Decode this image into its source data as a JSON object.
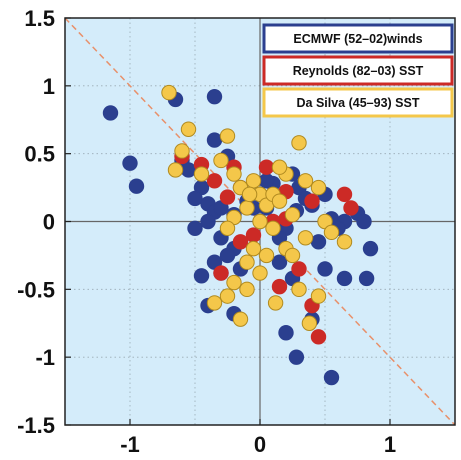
{
  "chart_data": {
    "type": "scatter",
    "title": "",
    "xlabel": "",
    "ylabel": "",
    "xlim": [
      -1.5,
      1.5
    ],
    "ylim": [
      -1.5,
      1.5
    ],
    "x_ticks": [
      "-1",
      "0",
      "1"
    ],
    "y_ticks": [
      "1.5",
      "1",
      "0.5",
      "0",
      "-0.5",
      "-1",
      "-1.5"
    ],
    "grid": true,
    "background_color": "#d4ecfa",
    "reference_lines": [
      {
        "type": "diagonal",
        "slope": -1,
        "style": "dashed",
        "color": "#e8906a"
      },
      {
        "type": "axis-cross",
        "x": 0,
        "y": 0,
        "color": "#666666"
      }
    ],
    "legend_placement": "top-right",
    "series": [
      {
        "name": "ECMWF (52–02)winds",
        "color": "#2b3f8f",
        "border_color": "#2b3f8f",
        "points": [
          [
            -1.15,
            0.8
          ],
          [
            -1.0,
            0.43
          ],
          [
            -0.95,
            0.26
          ],
          [
            -0.65,
            0.9
          ],
          [
            -0.35,
            0.92
          ],
          [
            -0.6,
            0.45
          ],
          [
            -0.55,
            0.38
          ],
          [
            -0.45,
            0.25
          ],
          [
            -0.35,
            0.6
          ],
          [
            -0.25,
            0.48
          ],
          [
            -0.5,
            0.17
          ],
          [
            -0.4,
            0.13
          ],
          [
            -0.35,
            0.07
          ],
          [
            -0.3,
            0.1
          ],
          [
            -0.2,
            0.05
          ],
          [
            -0.1,
            0.15
          ],
          [
            0.05,
            0.1
          ],
          [
            0.1,
            0.28
          ],
          [
            0.25,
            0.35
          ],
          [
            0.3,
            0.25
          ],
          [
            0.35,
            0.17
          ],
          [
            0.2,
            -0.05
          ],
          [
            0.4,
            0.12
          ],
          [
            0.5,
            0.2
          ],
          [
            0.55,
            0.02
          ],
          [
            0.65,
            0.0
          ],
          [
            0.75,
            0.06
          ],
          [
            0.8,
            0.0
          ],
          [
            0.85,
            -0.2
          ],
          [
            0.45,
            -0.15
          ],
          [
            -0.5,
            -0.05
          ],
          [
            -0.3,
            -0.12
          ],
          [
            -0.2,
            -0.2
          ],
          [
            -0.25,
            -0.25
          ],
          [
            -0.35,
            -0.3
          ],
          [
            -0.45,
            -0.4
          ],
          [
            -0.3,
            -0.38
          ],
          [
            -0.15,
            -0.35
          ],
          [
            0.15,
            -0.3
          ],
          [
            0.25,
            -0.42
          ],
          [
            0.5,
            -0.35
          ],
          [
            -0.4,
            -0.62
          ],
          [
            -0.2,
            -0.68
          ],
          [
            0.2,
            -0.82
          ],
          [
            0.4,
            -0.72
          ],
          [
            0.28,
            -1.0
          ],
          [
            0.55,
            -1.15
          ],
          [
            0.65,
            -0.42
          ],
          [
            0.82,
            -0.42
          ],
          [
            0.15,
            -0.12
          ],
          [
            0.28,
            0.08
          ],
          [
            -0.4,
            0.0
          ],
          [
            0.05,
            0.3
          ],
          [
            -0.05,
            0.1
          ],
          [
            0.6,
            -0.05
          ]
        ]
      },
      {
        "name": "Reynolds (82–03) SST",
        "color": "#cc2a26",
        "border_color": "#cc2a26",
        "points": [
          [
            -0.6,
            0.48
          ],
          [
            -0.45,
            0.42
          ],
          [
            -0.35,
            0.3
          ],
          [
            -0.2,
            0.4
          ],
          [
            -0.15,
            0.25
          ],
          [
            0.05,
            0.4
          ],
          [
            -0.25,
            0.18
          ],
          [
            0.1,
            0.0
          ],
          [
            0.2,
            0.22
          ],
          [
            0.4,
            0.15
          ],
          [
            0.65,
            0.2
          ],
          [
            0.7,
            0.1
          ],
          [
            -0.05,
            -0.1
          ],
          [
            -0.15,
            -0.15
          ],
          [
            -0.3,
            -0.38
          ],
          [
            0.3,
            -0.35
          ],
          [
            0.15,
            -0.48
          ],
          [
            0.4,
            -0.62
          ],
          [
            0.45,
            -0.85
          ],
          [
            0.2,
            0.02
          ]
        ]
      },
      {
        "name": "Da Silva  (45–93)  SST",
        "color": "#f4c74a",
        "border_color": "#b08a20",
        "points": [
          [
            -0.7,
            0.95
          ],
          [
            -0.55,
            0.68
          ],
          [
            -0.6,
            0.52
          ],
          [
            -0.65,
            0.38
          ],
          [
            -0.45,
            0.35
          ],
          [
            -0.3,
            0.45
          ],
          [
            -0.25,
            0.63
          ],
          [
            -0.2,
            0.35
          ],
          [
            -0.15,
            0.25
          ],
          [
            -0.05,
            0.3
          ],
          [
            0.0,
            0.2
          ],
          [
            -0.1,
            0.1
          ],
          [
            0.05,
            0.12
          ],
          [
            0.1,
            0.2
          ],
          [
            0.2,
            0.35
          ],
          [
            0.3,
            0.58
          ],
          [
            0.15,
            0.15
          ],
          [
            0.25,
            0.05
          ],
          [
            0.35,
            0.3
          ],
          [
            0.5,
            0.0
          ],
          [
            0.55,
            -0.08
          ],
          [
            0.65,
            -0.15
          ],
          [
            -0.2,
            0.03
          ],
          [
            -0.25,
            -0.05
          ],
          [
            0.0,
            0.0
          ],
          [
            0.1,
            -0.05
          ],
          [
            -0.05,
            -0.2
          ],
          [
            -0.1,
            -0.3
          ],
          [
            0.05,
            -0.25
          ],
          [
            0.2,
            -0.2
          ],
          [
            -0.2,
            -0.45
          ],
          [
            -0.1,
            -0.5
          ],
          [
            0.0,
            -0.38
          ],
          [
            0.3,
            -0.5
          ],
          [
            0.45,
            -0.55
          ],
          [
            -0.25,
            -0.55
          ],
          [
            -0.35,
            -0.6
          ],
          [
            0.38,
            -0.75
          ],
          [
            -0.15,
            -0.72
          ],
          [
            0.12,
            -0.6
          ],
          [
            0.35,
            -0.12
          ],
          [
            0.25,
            -0.25
          ],
          [
            -0.08,
            0.2
          ],
          [
            0.15,
            0.4
          ],
          [
            0.45,
            0.25
          ]
        ]
      }
    ]
  }
}
